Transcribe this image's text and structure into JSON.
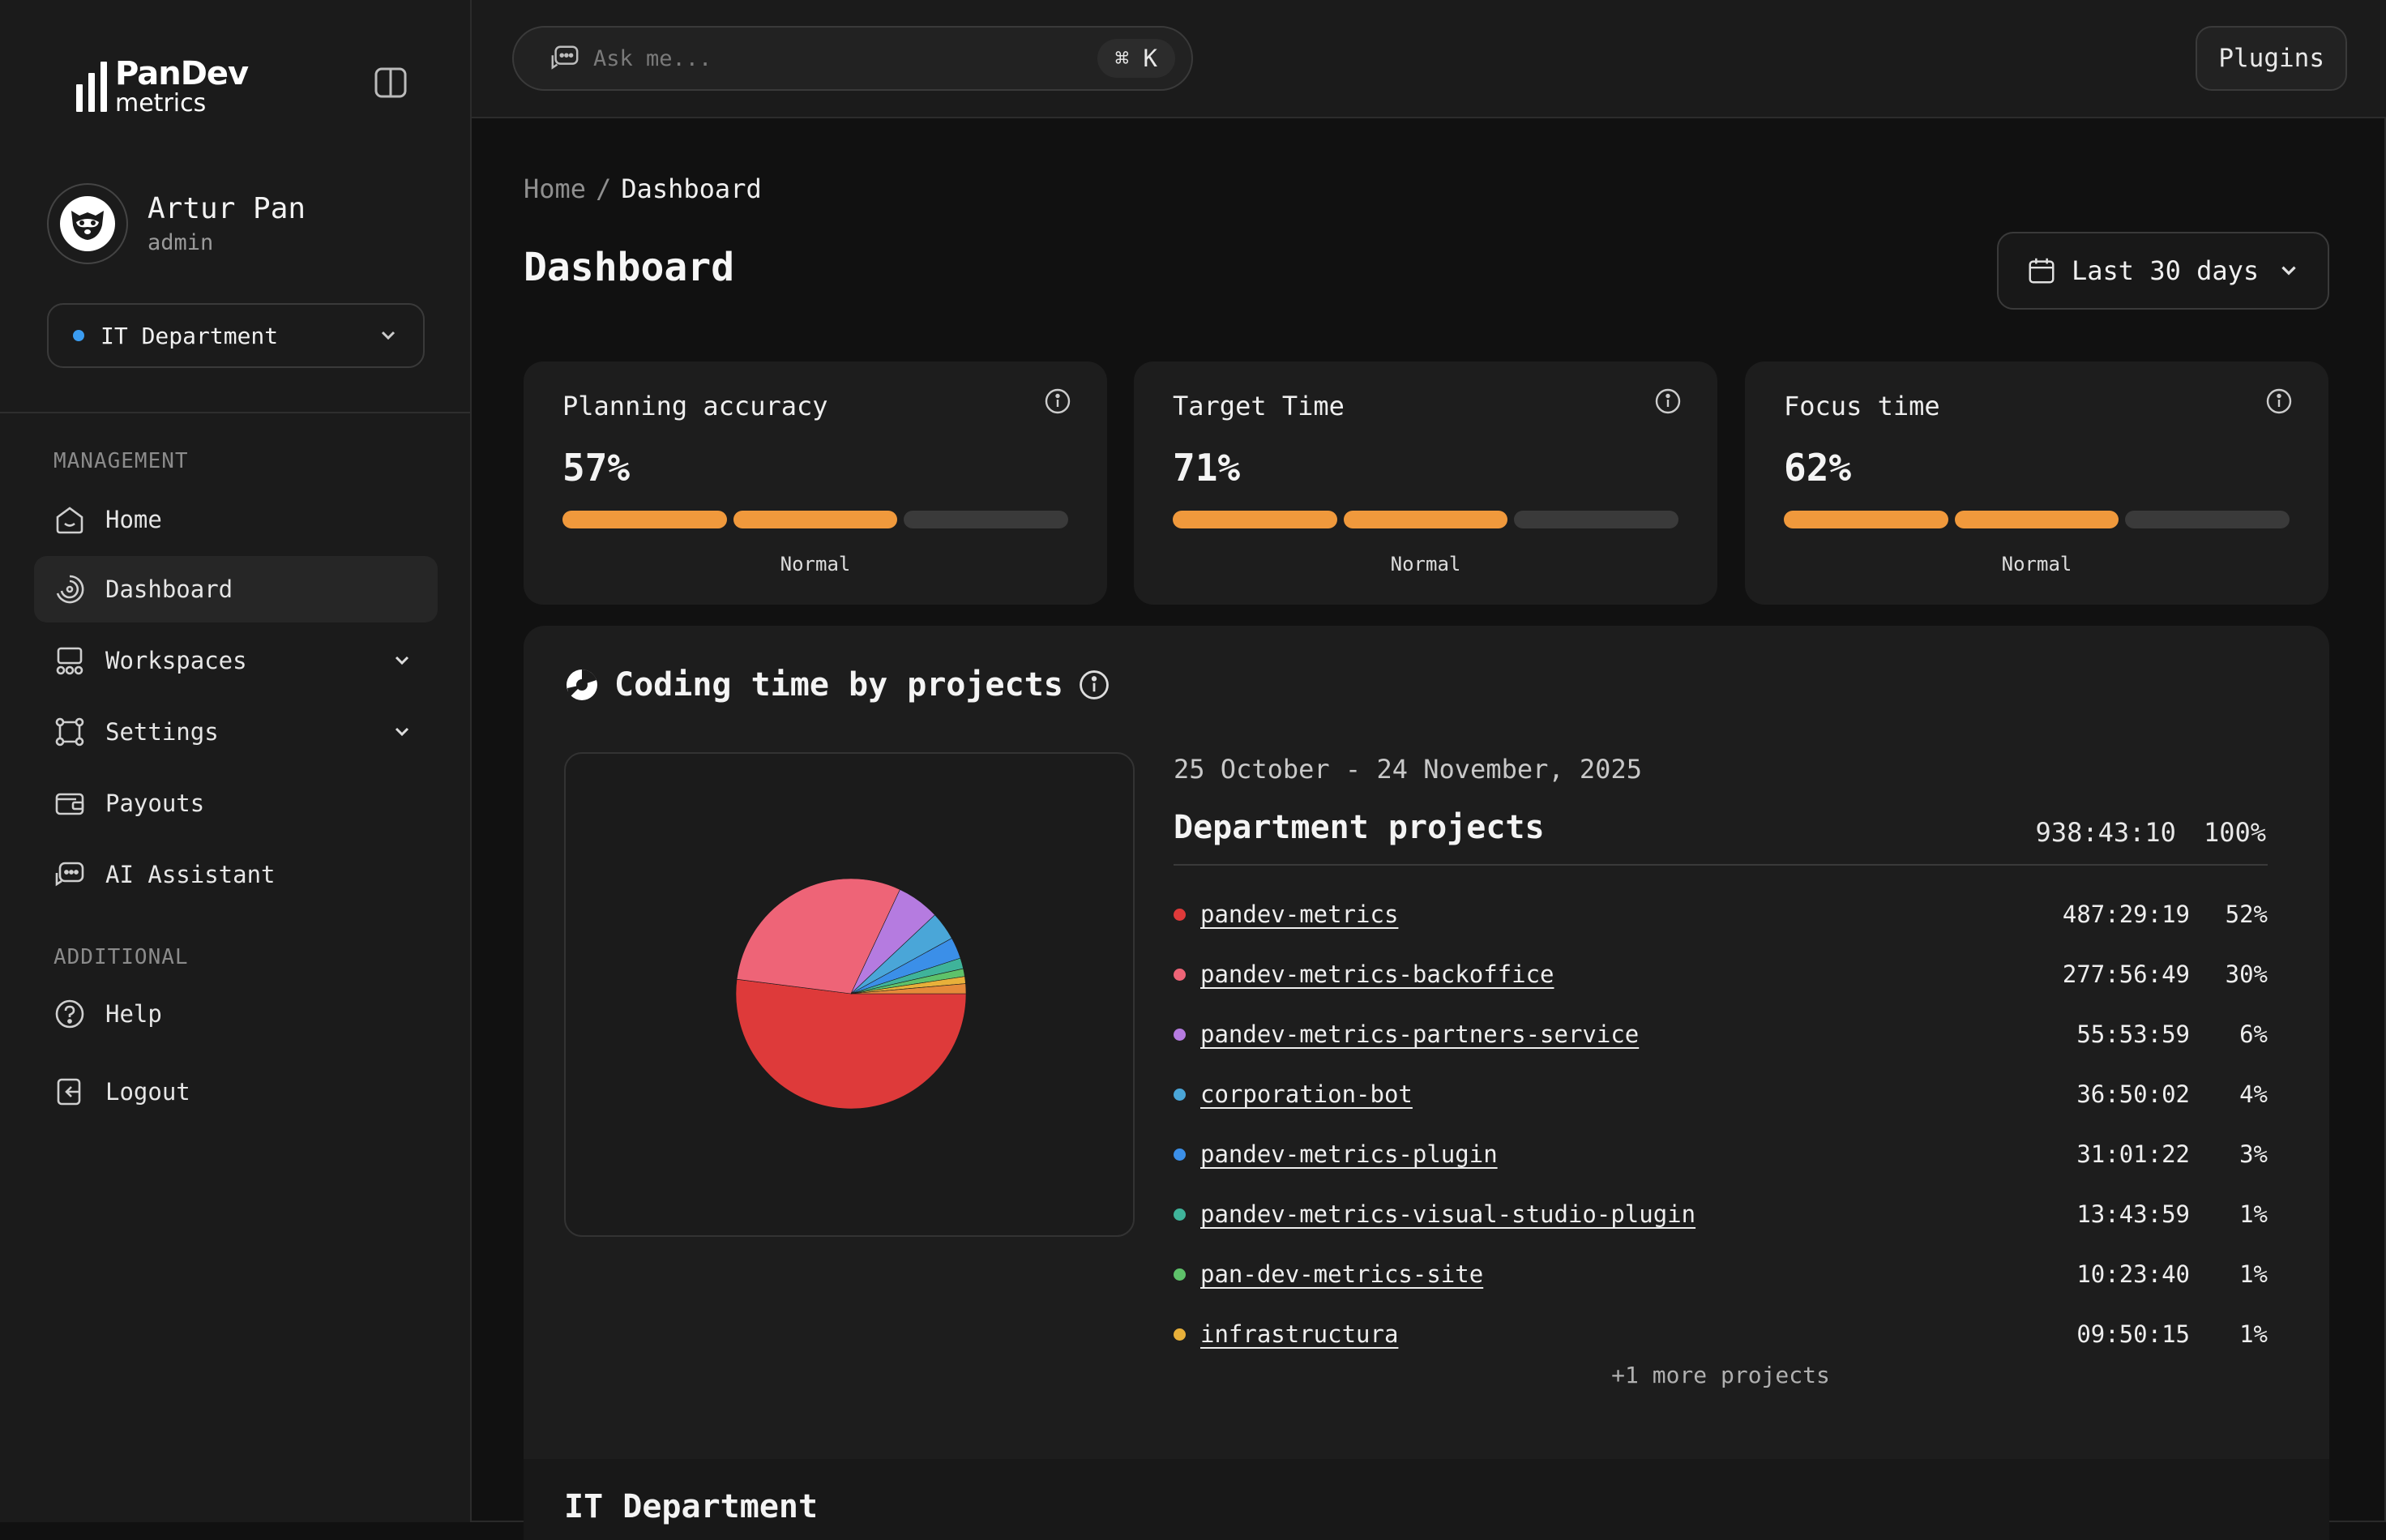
{
  "brand": {
    "name_main": "PanDev",
    "name_sub": "metrics"
  },
  "user": {
    "name": "Artur Pan",
    "role": "admin"
  },
  "department_select": {
    "value": "IT Department",
    "dot_color": "#3b9cf0"
  },
  "nav": {
    "management_title": "MANAGEMENT",
    "additional_title": "ADDITIONAL",
    "items": [
      {
        "label": "Home"
      },
      {
        "label": "Dashboard"
      },
      {
        "label": "Workspaces"
      },
      {
        "label": "Settings"
      },
      {
        "label": "Payouts"
      },
      {
        "label": "AI Assistant"
      },
      {
        "label": "Help"
      },
      {
        "label": "Logout"
      }
    ]
  },
  "search": {
    "placeholder": "Ask me...",
    "shortcut": "⌘ K"
  },
  "header": {
    "plugins_label": "Plugins"
  },
  "breadcrumb": {
    "home": "Home",
    "separator": "/",
    "current": "Dashboard"
  },
  "page": {
    "title": "Dashboard",
    "date_range_label": "Last 30 days"
  },
  "metrics": [
    {
      "title": "Planning accuracy",
      "value": "57%",
      "status": "Normal",
      "segments_filled": 2,
      "segments_total": 3
    },
    {
      "title": "Target Time",
      "value": "71%",
      "status": "Normal",
      "segments_filled": 2,
      "segments_total": 3
    },
    {
      "title": "Focus time",
      "value": "62%",
      "status": "Normal",
      "segments_filled": 2,
      "segments_total": 3
    }
  ],
  "coding": {
    "title": "Coding time by projects",
    "range": "25 October - 24 November, 2025",
    "group_title": "Department projects",
    "total_time": "938:43:10",
    "total_pct": "100%",
    "more": "+1 more projects",
    "projects": [
      {
        "name": "pandev-metrics",
        "time": "487:29:19",
        "pct": "52%",
        "share": 52,
        "color": "#de3a3a"
      },
      {
        "name": "pandev-metrics-backoffice",
        "time": "277:56:49",
        "pct": "30%",
        "share": 30,
        "color": "#ee6477"
      },
      {
        "name": "pandev-metrics-partners-service",
        "time": "55:53:59",
        "pct": "6%",
        "share": 6,
        "color": "#b57be0"
      },
      {
        "name": "corporation-bot",
        "time": "36:50:02",
        "pct": "4%",
        "share": 4,
        "color": "#4aa6d8"
      },
      {
        "name": "pandev-metrics-plugin",
        "time": "31:01:22",
        "pct": "3%",
        "share": 3,
        "color": "#3b8fe8"
      },
      {
        "name": "pandev-metrics-visual-studio-plugin",
        "time": "13:43:59",
        "pct": "1%",
        "share": 1.5,
        "color": "#3fb39a"
      },
      {
        "name": "pan-dev-metrics-site",
        "time": "10:23:40",
        "pct": "1%",
        "share": 1.1,
        "color": "#5ec26a"
      },
      {
        "name": "infrastructura",
        "time": "09:50:15",
        "pct": "1%",
        "share": 1.0,
        "color": "#e8b03a"
      }
    ],
    "extra_slice_color": "#e58a3a"
  },
  "sub_section": {
    "title": "IT Department"
  }
}
